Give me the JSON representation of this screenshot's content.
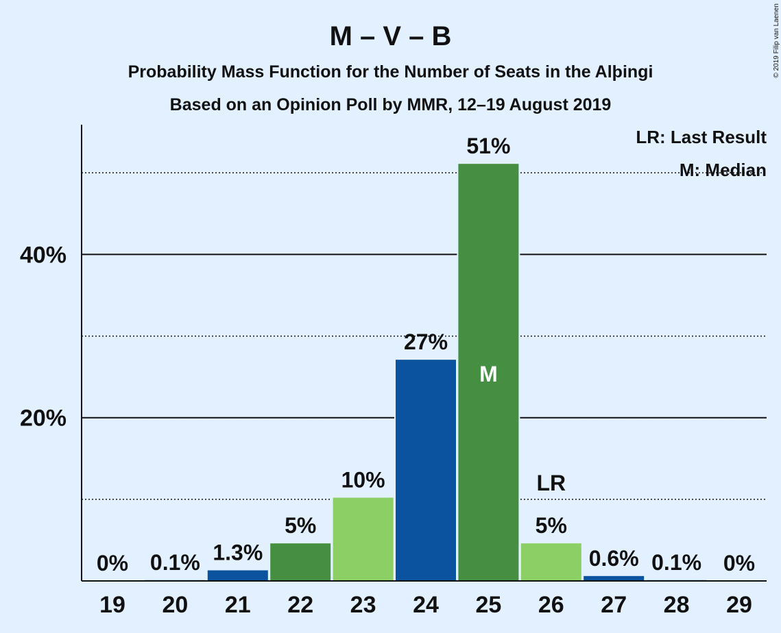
{
  "chart_data": {
    "type": "bar",
    "title": "M – V – B",
    "subtitle_lines": [
      "Probability Mass Function for the Number of Seats in the Alþingi",
      "Based on an Opinion Poll by MMR, 12–19 August 2019"
    ],
    "copyright": "© 2019 Filip van Laenen",
    "categories": [
      "19",
      "20",
      "21",
      "22",
      "23",
      "24",
      "25",
      "26",
      "27",
      "28",
      "29"
    ],
    "values": [
      0,
      0.1,
      1.3,
      4.6,
      10.2,
      27.1,
      51.1,
      4.6,
      0.6,
      0.1,
      0
    ],
    "value_labels": [
      "0%",
      "0.1%",
      "1.3%",
      "5%",
      "10%",
      "27%",
      "51%",
      "5%",
      "0.6%",
      "0.1%",
      "0%"
    ],
    "bar_colors": [
      "#0b539e",
      "#0b539e",
      "#0b539e",
      "#468f42",
      "#8bcf65",
      "#0b539e",
      "#468f42",
      "#8bcf65",
      "#0b539e",
      "#0b539e",
      "#0b539e"
    ],
    "ylim": [
      0,
      55.9
    ],
    "yticks": [
      {
        "value": 20,
        "label": "20%"
      },
      {
        "value": 40,
        "label": "40%"
      }
    ],
    "minor_gridlines": [
      10,
      30,
      50
    ],
    "median_seat": "25",
    "median_marker": "M",
    "last_result_seat": "26",
    "last_result_marker": "LR",
    "legend": {
      "position": "top-right",
      "last_result": "LR: Last Result",
      "median": "M: Median"
    }
  }
}
